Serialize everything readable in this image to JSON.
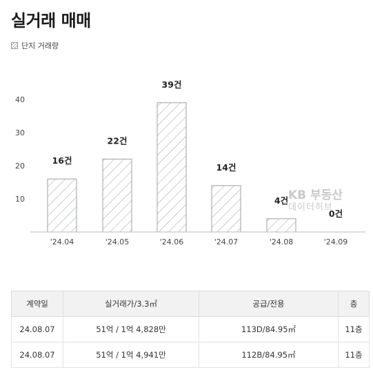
{
  "page": {
    "title": "실거래 매매",
    "legend_label": "단지 거래량"
  },
  "watermark": {
    "line1": "KB 부동산",
    "line2": "데이터허브"
  },
  "chart_data": {
    "type": "bar",
    "categories": [
      "'24.04",
      "'24.05",
      "'24.06",
      "'24.07",
      "'24.08",
      "'24.09"
    ],
    "values": [
      16,
      22,
      39,
      14,
      4,
      0
    ],
    "value_labels": [
      "16건",
      "22건",
      "39건",
      "14건",
      "4건",
      "0건"
    ],
    "y_ticks": [
      "10",
      "20",
      "30",
      "40"
    ],
    "ylim": [
      0,
      40
    ],
    "grid": false,
    "bar_fill": "hatched",
    "bar_stroke": "#9aa0a6"
  },
  "table": {
    "headers": [
      "계약일",
      "실거래가/3.3㎡",
      "공급/전용",
      "층"
    ],
    "rows": [
      [
        "24.08.07",
        "51억 / 1억 4,828만",
        "113D/84.95㎡",
        "11층"
      ],
      [
        "24.08.07",
        "51억 / 1억 4,941만",
        "112B/84.95㎡",
        "11층"
      ]
    ]
  }
}
